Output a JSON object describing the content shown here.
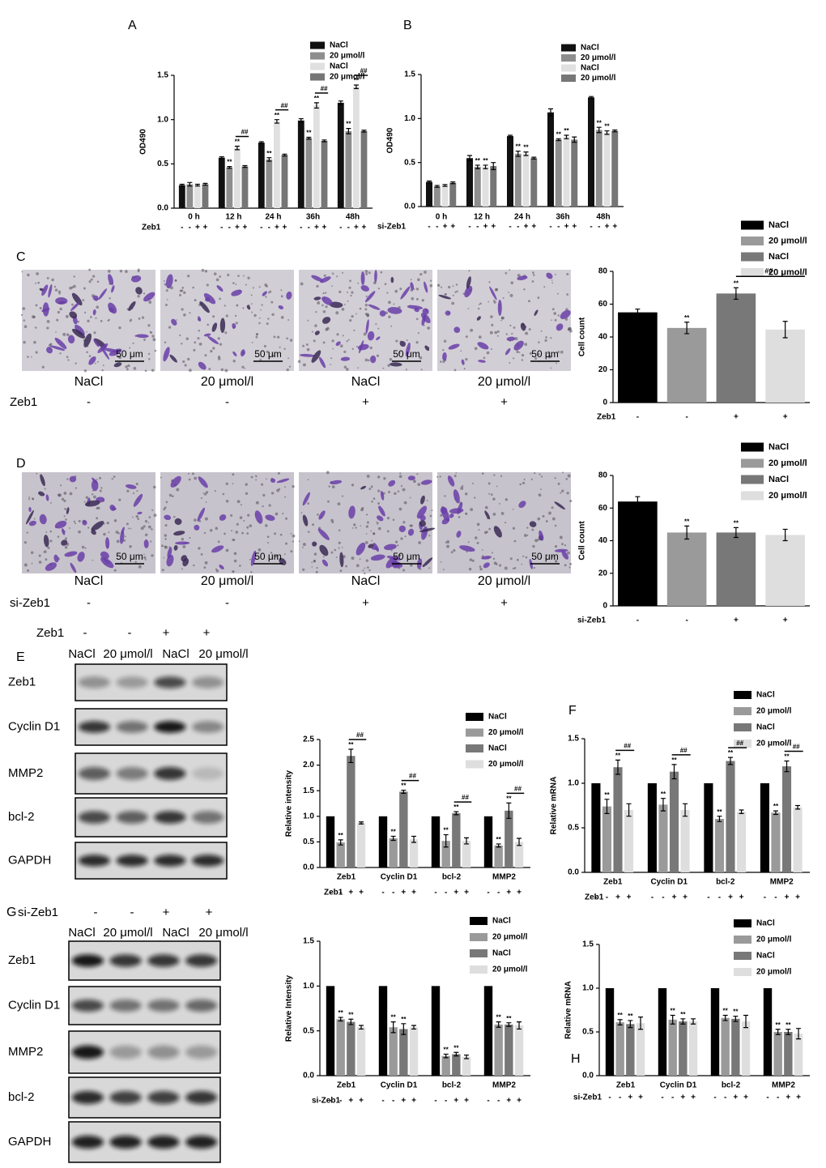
{
  "chart_data": [
    {
      "panel": "A",
      "type": "bar",
      "y_label": "OD490",
      "categories": [
        "0 h",
        "12 h",
        "24 h",
        "36h",
        "48h"
      ],
      "condition": {
        "label": "Zeb1",
        "signs": [
          "-",
          "-",
          "+",
          "+"
        ]
      },
      "ylim": [
        0,
        1.5
      ],
      "yticks": [
        {
          "value": 0,
          "label": "0.0"
        },
        0.5,
        {
          "value": 1,
          "label": "1.0"
        },
        1.5
      ],
      "series": [
        {
          "name": "NaCl",
          "color": "#111111",
          "values": [
            0.26,
            0.57,
            0.74,
            0.99,
            1.19
          ],
          "errors": [
            0.01,
            0.01,
            0.01,
            0.02,
            0.02
          ]
        },
        {
          "name": "20 μmol/l",
          "color": "#8e8e8e",
          "values": [
            0.27,
            0.46,
            0.55,
            0.79,
            0.87
          ],
          "errors": [
            0.02,
            0.01,
            0.02,
            0.01,
            0.03
          ],
          "marks": [
            null,
            "**",
            "**",
            "**",
            "**"
          ]
        },
        {
          "name": "NaCl",
          "color": "#e0e0e0",
          "values": [
            0.26,
            0.68,
            0.98,
            1.16,
            1.37
          ],
          "errors": [
            0.01,
            0.02,
            0.02,
            0.03,
            0.02
          ],
          "marks": [
            null,
            "**",
            "**",
            "**",
            "**"
          ]
        },
        {
          "name": "20 μmol/l",
          "color": "#767676",
          "values": [
            0.27,
            0.47,
            0.6,
            0.76,
            0.87
          ],
          "errors": [
            0.01,
            0.01,
            0.01,
            0.01,
            0.01
          ]
        }
      ],
      "brackets": [
        null,
        "##",
        "##",
        "##",
        "##"
      ]
    },
    {
      "panel": "B",
      "type": "bar",
      "y_label": "OD490",
      "categories": [
        "0 h",
        "12 h",
        "24 h",
        "36h",
        "48h"
      ],
      "condition": {
        "label": "si-Zeb1",
        "signs": [
          "-",
          "-",
          "+",
          "+"
        ]
      },
      "ylim": [
        0,
        1.5
      ],
      "yticks": [
        {
          "value": 0,
          "label": "0.0"
        },
        0.5,
        {
          "value": 1,
          "label": "1.0"
        },
        1.5
      ],
      "series": [
        {
          "name": "NaCl",
          "color": "#111111",
          "values": [
            0.28,
            0.55,
            0.8,
            1.07,
            1.24
          ],
          "errors": [
            0.01,
            0.03,
            0.01,
            0.04,
            0.01
          ]
        },
        {
          "name": "20 μmol/l",
          "color": "#8e8e8e",
          "values": [
            0.23,
            0.45,
            0.6,
            0.76,
            0.87
          ],
          "errors": [
            0.01,
            0.02,
            0.03,
            0.01,
            0.03
          ],
          "marks": [
            null,
            "**",
            "**",
            "**",
            "**"
          ]
        },
        {
          "name": "NaCl",
          "color": "#e0e0e0",
          "values": [
            0.24,
            0.45,
            0.6,
            0.79,
            0.84
          ],
          "errors": [
            0.01,
            0.02,
            0.02,
            0.02,
            0.02
          ],
          "marks": [
            null,
            "**",
            "**",
            "**",
            "**"
          ]
        },
        {
          "name": "20 μmol/l",
          "color": "#767676",
          "values": [
            0.27,
            0.46,
            0.55,
            0.76,
            0.86
          ],
          "errors": [
            0.01,
            0.04,
            0.01,
            0.03,
            0.01
          ]
        }
      ]
    },
    {
      "type": "bar",
      "y_label": "Cell count",
      "condition_label": "Zeb1",
      "categories": [
        "-",
        "-",
        "+",
        "+"
      ],
      "values": [
        55,
        45.5,
        66.5,
        44.5
      ],
      "errors": [
        2,
        3.5,
        3.5,
        5
      ],
      "marks": [
        null,
        "**",
        "**",
        null
      ],
      "bracket_label": "##",
      "colors": [
        "#000000",
        "#9a9a9a",
        "#787878",
        "#dedede"
      ],
      "legend": [
        "NaCl",
        "20 μmol/l",
        "NaCl",
        "20 μmol/l"
      ],
      "ylim": [
        0,
        80
      ],
      "yticks": [
        0,
        20,
        40,
        60,
        80
      ]
    },
    {
      "type": "bar",
      "y_label": "Cell count",
      "condition_label": "si-Zeb1",
      "categories": [
        "-",
        "-",
        "+",
        "+"
      ],
      "values": [
        64,
        45,
        45,
        43.5
      ],
      "errors": [
        3,
        4,
        3,
        3.5
      ],
      "marks": [
        null,
        "**",
        "**",
        null
      ],
      "colors": [
        "#000000",
        "#9a9a9a",
        "#787878",
        "#dedede"
      ],
      "legend": [
        "NaCl",
        "20 μmol/l",
        "NaCl",
        "20 μmol/l"
      ],
      "ylim": [
        0,
        80
      ],
      "yticks": [
        0,
        20,
        40,
        60,
        80
      ]
    },
    {
      "type": "bar",
      "y_label": "Relative intensity",
      "categories": [
        "Zeb1",
        "Cyclin D1",
        "bcl-2",
        "MMP2"
      ],
      "condition": {
        "label": "Zeb1",
        "signs": [
          "-",
          "-",
          "+",
          "+"
        ]
      },
      "ylim": [
        0,
        2.5
      ],
      "yticks": [
        {
          "value": 0,
          "label": "0.0"
        },
        0.5,
        {
          "value": 1,
          "label": "1.0"
        },
        1.5,
        {
          "value": 2,
          "label": "2.0"
        },
        2.5
      ],
      "series": [
        {
          "name": "NaCl",
          "color": "#000000",
          "values": [
            1,
            1,
            1,
            1
          ]
        },
        {
          "name": "20 μmol/l",
          "color": "#9a9a9a",
          "values": [
            0.49,
            0.57,
            0.52,
            0.43
          ],
          "errors": [
            0.05,
            0.04,
            0.12,
            0.03
          ],
          "marks": [
            "**",
            "**",
            "**",
            "**"
          ]
        },
        {
          "name": "NaCl",
          "color": "#787878",
          "values": [
            2.18,
            1.48,
            1.06,
            1.11
          ],
          "errors": [
            0.13,
            0.03,
            0.03,
            0.15
          ],
          "marks": [
            "**",
            "**",
            "**",
            "**"
          ]
        },
        {
          "name": "20 μmol/l",
          "color": "#dedede",
          "values": [
            0.87,
            0.55,
            0.52,
            0.5
          ],
          "errors": [
            0.02,
            0.06,
            0.06,
            0.07
          ]
        }
      ],
      "brackets": [
        "##",
        "##",
        "##",
        "##"
      ]
    },
    {
      "panel": "F",
      "type": "bar",
      "y_label": "Relative mRNA",
      "categories": [
        "Zeb1",
        "Cyclin D1",
        "bcl-2",
        "MMP2"
      ],
      "condition": {
        "label": "Zeb1",
        "signs": [
          "-",
          "-",
          "+",
          "+"
        ]
      },
      "ylim": [
        0,
        1.5
      ],
      "yticks": [
        {
          "value": 0,
          "label": "0.0"
        },
        0.5,
        {
          "value": 1,
          "label": "1.0"
        },
        1.5
      ],
      "series": [
        {
          "name": "NaCl",
          "color": "#000000",
          "values": [
            1,
            1,
            1,
            1
          ]
        },
        {
          "name": "20 μmol/l",
          "color": "#9a9a9a",
          "values": [
            0.74,
            0.76,
            0.6,
            0.67
          ],
          "errors": [
            0.08,
            0.07,
            0.03,
            0.02
          ],
          "marks": [
            "**",
            "**",
            "**",
            "**"
          ]
        },
        {
          "name": "NaCl",
          "color": "#787878",
          "values": [
            1.18,
            1.13,
            1.25,
            1.19
          ],
          "errors": [
            0.08,
            0.08,
            0.04,
            0.06
          ],
          "marks": [
            "**",
            "**",
            "**",
            "**"
          ]
        },
        {
          "name": "20 μmol/l",
          "color": "#dedede",
          "values": [
            0.7,
            0.7,
            0.68,
            0.73
          ],
          "errors": [
            0.07,
            0.07,
            0.02,
            0.02
          ]
        }
      ],
      "brackets": [
        "##",
        "##",
        "##",
        "##"
      ]
    },
    {
      "type": "bar",
      "y_label": "Relative Intensity",
      "categories": [
        "Zeb1",
        "Cyclin D1",
        "bcl-2",
        "MMP2"
      ],
      "condition": {
        "label": "si-Zeb1",
        "signs": [
          "-",
          "-",
          "+",
          "+"
        ]
      },
      "ylim": [
        0,
        1.5
      ],
      "yticks": [
        {
          "value": 0,
          "label": "0.0"
        },
        0.5,
        {
          "value": 1,
          "label": "1.0"
        },
        1.5
      ],
      "series": [
        {
          "name": "NaCl",
          "color": "#000000",
          "values": [
            1,
            1,
            1,
            1
          ]
        },
        {
          "name": "20 μmol/l",
          "color": "#9a9a9a",
          "values": [
            0.63,
            0.54,
            0.22,
            0.57
          ],
          "errors": [
            0.02,
            0.06,
            0.02,
            0.03
          ],
          "marks": [
            "**",
            "**",
            "**",
            "**"
          ]
        },
        {
          "name": "NaCl",
          "color": "#787878",
          "values": [
            0.6,
            0.52,
            0.24,
            0.57
          ],
          "errors": [
            0.03,
            0.06,
            0.02,
            0.02
          ],
          "marks": [
            "**",
            "**",
            "**",
            "**"
          ]
        },
        {
          "name": "20 μmol/l",
          "color": "#dedede",
          "values": [
            0.54,
            0.54,
            0.21,
            0.56
          ],
          "errors": [
            0.02,
            0.02,
            0.02,
            0.04
          ]
        }
      ]
    },
    {
      "panel": "H",
      "type": "bar",
      "y_label": "Relative mRNA",
      "categories": [
        "Zeb1",
        "Cyclin D1",
        "bcl-2",
        "MMP2"
      ],
      "condition": {
        "label": "si-Zeb1",
        "signs": [
          "-",
          "-",
          "+",
          "+"
        ]
      },
      "ylim": [
        0,
        1.5
      ],
      "yticks": [
        {
          "value": 0,
          "label": "0.0"
        },
        0.5,
        {
          "value": 1,
          "label": "1.0"
        },
        1.5
      ],
      "series": [
        {
          "name": "NaCl",
          "color": "#000000",
          "values": [
            1,
            1,
            1,
            1
          ]
        },
        {
          "name": "20 μmol/l",
          "color": "#9a9a9a",
          "values": [
            0.61,
            0.64,
            0.66,
            0.5
          ],
          "errors": [
            0.03,
            0.05,
            0.03,
            0.03
          ],
          "marks": [
            "**",
            "**",
            "**",
            "**"
          ]
        },
        {
          "name": "NaCl",
          "color": "#787878",
          "values": [
            0.59,
            0.62,
            0.65,
            0.5
          ],
          "errors": [
            0.04,
            0.03,
            0.03,
            0.03
          ],
          "marks": [
            "**",
            "**",
            "**",
            "**"
          ]
        },
        {
          "name": "20 μmol/l",
          "color": "#dedede",
          "values": [
            0.6,
            0.62,
            0.62,
            0.48
          ],
          "errors": [
            0.07,
            0.03,
            0.07,
            0.06
          ]
        }
      ]
    }
  ],
  "micrographs": [
    {
      "panel": "C",
      "captions": [
        "NaCl",
        "20 μmol/l",
        "NaCl",
        "20 μmol/l"
      ],
      "condition": {
        "label": "Zeb1",
        "signs": [
          "-",
          "-",
          "+",
          "+"
        ]
      },
      "scale_bar": "50 μm"
    },
    {
      "panel": "D",
      "captions": [
        "NaCl",
        "20 μmol/l",
        "NaCl",
        "20 μmol/l"
      ],
      "condition": {
        "label": "si-Zeb1",
        "signs": [
          "-",
          "-",
          "+",
          "+"
        ]
      },
      "scale_bar": "50 μm"
    }
  ],
  "blots": [
    {
      "panel": "E",
      "condition": {
        "label": "Zeb1",
        "signs": [
          "-",
          "-",
          "+",
          "+"
        ]
      },
      "lanes": [
        "NaCl",
        "20 μmol/l",
        "NaCl",
        "20 μmol/l"
      ],
      "bands": [
        "Zeb1",
        "Cyclin D1",
        "MMP2",
        "bcl-2",
        "GAPDH"
      ]
    },
    {
      "panel": "G",
      "condition": {
        "label": "si-Zeb1",
        "signs": [
          "-",
          "-",
          "+",
          "+"
        ]
      },
      "lanes": [
        "NaCl",
        "20 μmol/l",
        "NaCl",
        "20 μmol/l"
      ],
      "bands": [
        "Zeb1",
        "Cyclin D1",
        "MMP2",
        "bcl-2",
        "GAPDH"
      ]
    }
  ]
}
